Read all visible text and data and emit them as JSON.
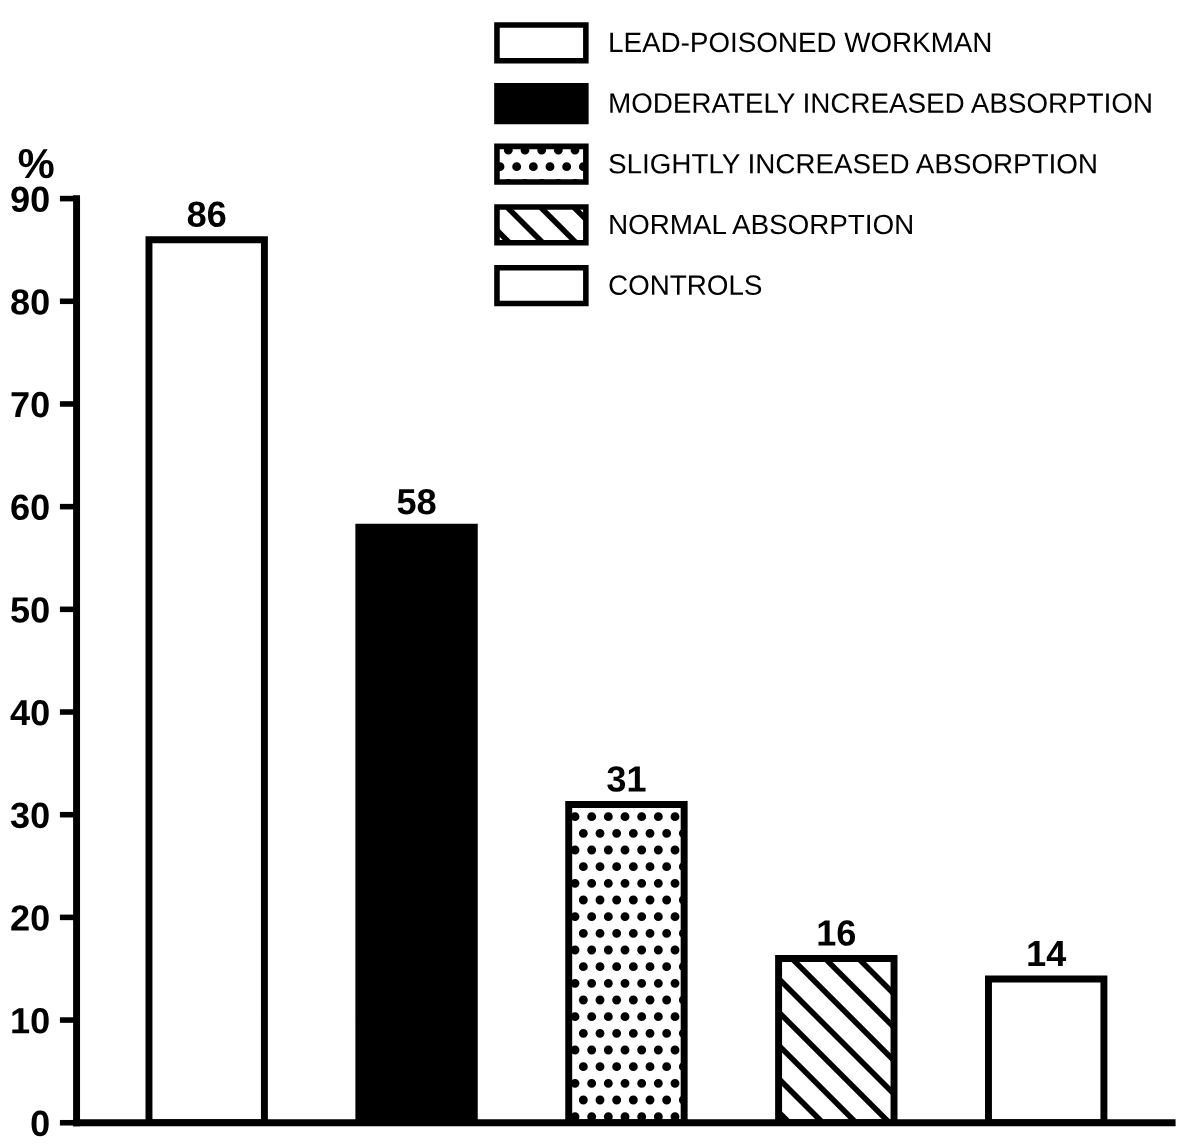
{
  "chart_data": {
    "type": "bar",
    "ylabel": "%",
    "categories": [
      null,
      null,
      null,
      null,
      null
    ],
    "series": [
      {
        "name": "LEAD-POISONED WORKMAN",
        "color": "#ffffff",
        "values": [
          86,
          null,
          null,
          null,
          null
        ]
      },
      {
        "name": "MODERATELY INCREASED ABSORPTION",
        "color": "#000000",
        "values": [
          null,
          58,
          null,
          null,
          null
        ]
      },
      {
        "name": "SLIGHTLY INCREASED ABSORPTION",
        "color": "#000000",
        "values": [
          null,
          null,
          31,
          null,
          null
        ]
      },
      {
        "name": "NORMAL ABSORPTION",
        "color": "#000000",
        "values": [
          null,
          null,
          null,
          16,
          null
        ]
      },
      {
        "name": "CONTROLS",
        "color": "#000000",
        "values": [
          null,
          null,
          null,
          null,
          14
        ]
      }
    ],
    "ylim": [
      0,
      90
    ],
    "yticks": [
      0,
      10,
      20,
      30,
      40,
      50,
      60,
      70,
      80,
      90
    ],
    "data_labels": true,
    "grid": false,
    "legend": "top right"
  }
}
